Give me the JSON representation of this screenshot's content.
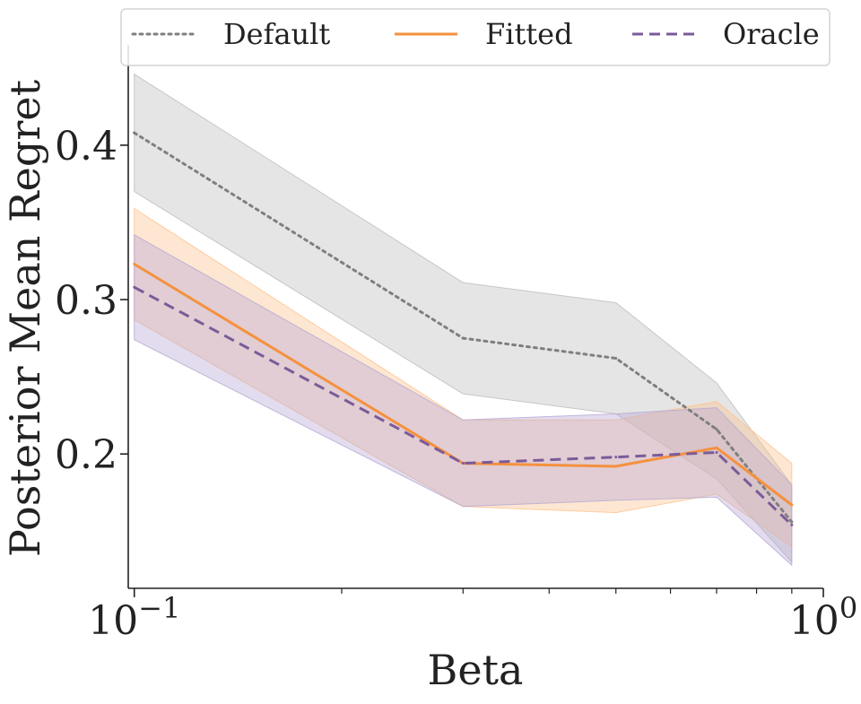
{
  "chart_data": {
    "type": "line",
    "title": "",
    "xlabel": "Beta",
    "ylabel": "Posterior Mean Regret",
    "xscale": "log",
    "xlim": [
      0.098,
      1.0
    ],
    "ylim": [
      0.113,
      0.465
    ],
    "grid": false,
    "legend_position": "top",
    "x": [
      0.1,
      0.3,
      0.5,
      0.7,
      0.9
    ],
    "x_ticks": [
      {
        "value": 0.1,
        "base": "10",
        "exp": "−1"
      },
      {
        "value": 1.0,
        "base": "10",
        "exp": "0"
      }
    ],
    "y_ticks": [
      {
        "value": 0.2,
        "label": "0.2"
      },
      {
        "value": 0.3,
        "label": "0.3"
      },
      {
        "value": 0.4,
        "label": "0.4"
      }
    ],
    "series": [
      {
        "name": "Default",
        "color": "#7f7f7f",
        "band_color": "#bdbdbd",
        "style": "dotted",
        "values": [
          0.408,
          0.275,
          0.262,
          0.216,
          0.156
        ],
        "lower": [
          0.37,
          0.239,
          0.226,
          0.184,
          0.13
        ],
        "upper": [
          0.446,
          0.311,
          0.298,
          0.246,
          0.18
        ]
      },
      {
        "name": "Fitted",
        "color": "#f5913e",
        "band_color": "#fdc28f",
        "style": "solid",
        "values": [
          0.323,
          0.194,
          0.192,
          0.204,
          0.167
        ],
        "lower": [
          0.287,
          0.166,
          0.162,
          0.174,
          0.14
        ],
        "upper": [
          0.359,
          0.222,
          0.222,
          0.234,
          0.194
        ]
      },
      {
        "name": "Oracle",
        "color": "#7b5b99",
        "band_color": "#b7a8d4",
        "style": "dashed",
        "values": [
          0.308,
          0.194,
          0.198,
          0.201,
          0.154
        ],
        "lower": [
          0.274,
          0.166,
          0.17,
          0.172,
          0.128
        ],
        "upper": [
          0.342,
          0.222,
          0.226,
          0.23,
          0.18
        ]
      }
    ]
  }
}
